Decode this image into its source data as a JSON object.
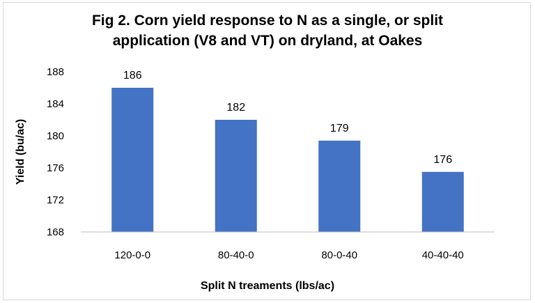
{
  "chart_data": {
    "type": "bar",
    "title_lines": [
      "Fig 2. Corn yield response to N as a single, or split",
      "application (V8 and VT) on dryland, at Oakes"
    ],
    "xlabel": "Split N treaments (lbs/ac)",
    "ylabel": "Yield (bu/ac)",
    "categories": [
      "120-0-0",
      "80-40-0",
      "80-0-40",
      "40-40-40"
    ],
    "values": [
      186,
      182,
      179.4,
      175.5
    ],
    "data_labels": [
      "186",
      "182",
      "179",
      "176"
    ],
    "ylim": [
      168,
      188
    ],
    "yticks": [
      168,
      172,
      176,
      180,
      184,
      188
    ],
    "grid": false,
    "legend": "none",
    "bar_color": "#4472c4",
    "axis_color": "#bfbfbf"
  }
}
